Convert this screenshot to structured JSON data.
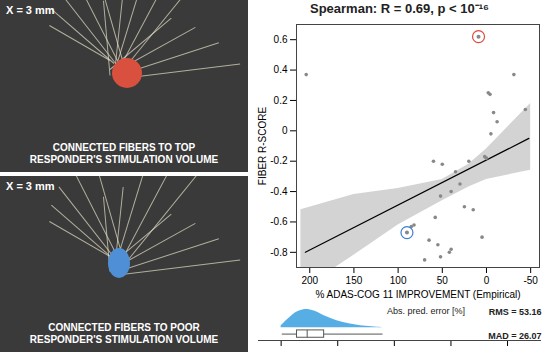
{
  "images": [
    {
      "label": "X = 3 mm",
      "caption": [
        "CONNECTED FIBERS TO TOP",
        "RESPONDER'S STIMULATION VOLUME"
      ],
      "color": "#d9503f"
    },
    {
      "label": "X = 3 mm",
      "caption": [
        "CONNECTED FIBERS TO POOR",
        "RESPONDER'S STIMULATION VOLUME"
      ],
      "color": "#4f8fd6"
    }
  ],
  "chart_data": [
    {
      "type": "scatter",
      "title": "Spearman: R = 0.69, p < 10⁻¹⁶",
      "x_label": "% ADAS-COG 11 IMPROVEMENT (Empirical)",
      "y_label": "FIBER R-SCORE",
      "x": [
        204,
        -31,
        -44,
        -2,
        -4,
        -8,
        -12,
        -5,
        2,
        0,
        20,
        35,
        30,
        50,
        60,
        40,
        52,
        25,
        15,
        58,
        85,
        82,
        65,
        55,
        52,
        70,
        40,
        5,
        42
      ],
      "values": [
        0.37,
        0.37,
        0.14,
        0.25,
        0.24,
        0.12,
        0.06,
        -0.02,
        -0.17,
        -0.18,
        -0.2,
        -0.27,
        -0.35,
        -0.22,
        -0.2,
        -0.4,
        -0.43,
        -0.5,
        -0.52,
        -0.57,
        -0.63,
        -0.62,
        -0.72,
        -0.75,
        -0.83,
        -0.85,
        -0.78,
        -0.7,
        -0.8
      ],
      "color": "#888888",
      "highlight": [
        {
          "x": 9,
          "y": 0.62,
          "color": "#e0493a"
        },
        {
          "x": 90,
          "y": -0.67,
          "color": "#3d7fd1"
        }
      ],
      "fit": {
        "x": [
          205,
          -48
        ],
        "values": [
          -0.8,
          -0.05
        ],
        "color": "#000000"
      },
      "band": {
        "x": [
          210,
          150,
          100,
          50,
          20,
          0,
          -50
        ],
        "lower": [
          -1.05,
          -0.82,
          -0.62,
          -0.46,
          -0.37,
          -0.32,
          -0.26
        ],
        "upper": [
          -0.52,
          -0.42,
          -0.38,
          -0.32,
          -0.22,
          -0.12,
          0.18
        ],
        "color": "#d3d3d3"
      },
      "xlim": [
        215,
        -60
      ],
      "xticks": [
        200,
        150,
        100,
        50,
        0,
        -50
      ],
      "ylim": [
        -0.9,
        0.7
      ],
      "yticks": [
        -0.8,
        -0.6,
        -0.4,
        -0.2,
        0,
        0.2,
        0.4,
        0.6
      ]
    },
    {
      "type": "raincloud",
      "title": "Abs. pred. error [%]",
      "annotations": [
        "RMS = 53.16",
        "MAD = 26.07"
      ],
      "x": [
        0,
        5,
        10,
        15,
        20,
        25,
        30,
        35,
        40,
        50,
        60,
        70,
        80,
        90
      ],
      "values": [
        0.1,
        0.4,
        0.7,
        0.9,
        1.0,
        1.0,
        0.9,
        0.75,
        0.6,
        0.35,
        0.2,
        0.1,
        0.05,
        0.0
      ],
      "box": {
        "min": 1,
        "q1": 14,
        "median": 23,
        "q3": 38,
        "max": 90
      },
      "color": "#3aa0e0",
      "xlim": [
        -20,
        230
      ],
      "xticks": [
        0,
        50,
        100,
        150,
        200
      ],
      "ylim": [
        -0.7,
        1.1
      ],
      "tick_labels": false
    }
  ]
}
